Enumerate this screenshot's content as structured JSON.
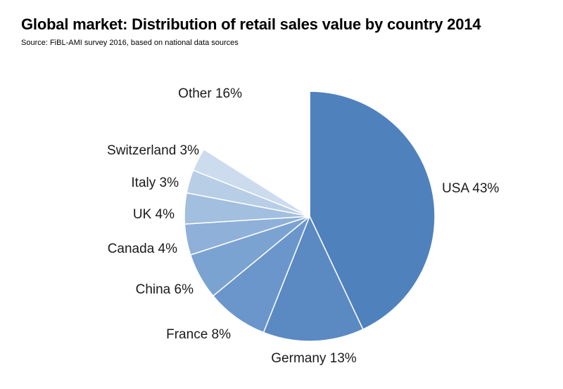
{
  "chart_data": {
    "type": "pie",
    "title": "Global market: Distribution of retail sales value by country 2014",
    "subtitle": "Source: FiBL-AMI survey 2016, based on national data sources",
    "slices": [
      {
        "label": "USA 43%",
        "value": 43,
        "color": "#4f81bd"
      },
      {
        "label": "Germany 13%",
        "value": 13,
        "color": "#5b8ac3"
      },
      {
        "label": "France 8%",
        "value": 8,
        "color": "#6a96cb"
      },
      {
        "label": "China 6%",
        "value": 6,
        "color": "#7ba3d2"
      },
      {
        "label": "Canada 4%",
        "value": 4,
        "color": "#8eb0d9"
      },
      {
        "label": "UK 4%",
        "value": 4,
        "color": "#a2bfe0"
      },
      {
        "label": "Italy 3%",
        "value": 3,
        "color": "#b8cde6"
      },
      {
        "label": "Switzerland 3%",
        "value": 3,
        "color": "#ccdcee"
      },
      {
        "label": "Other 16%",
        "value": 16,
        "color": "#ffffff"
      }
    ]
  }
}
